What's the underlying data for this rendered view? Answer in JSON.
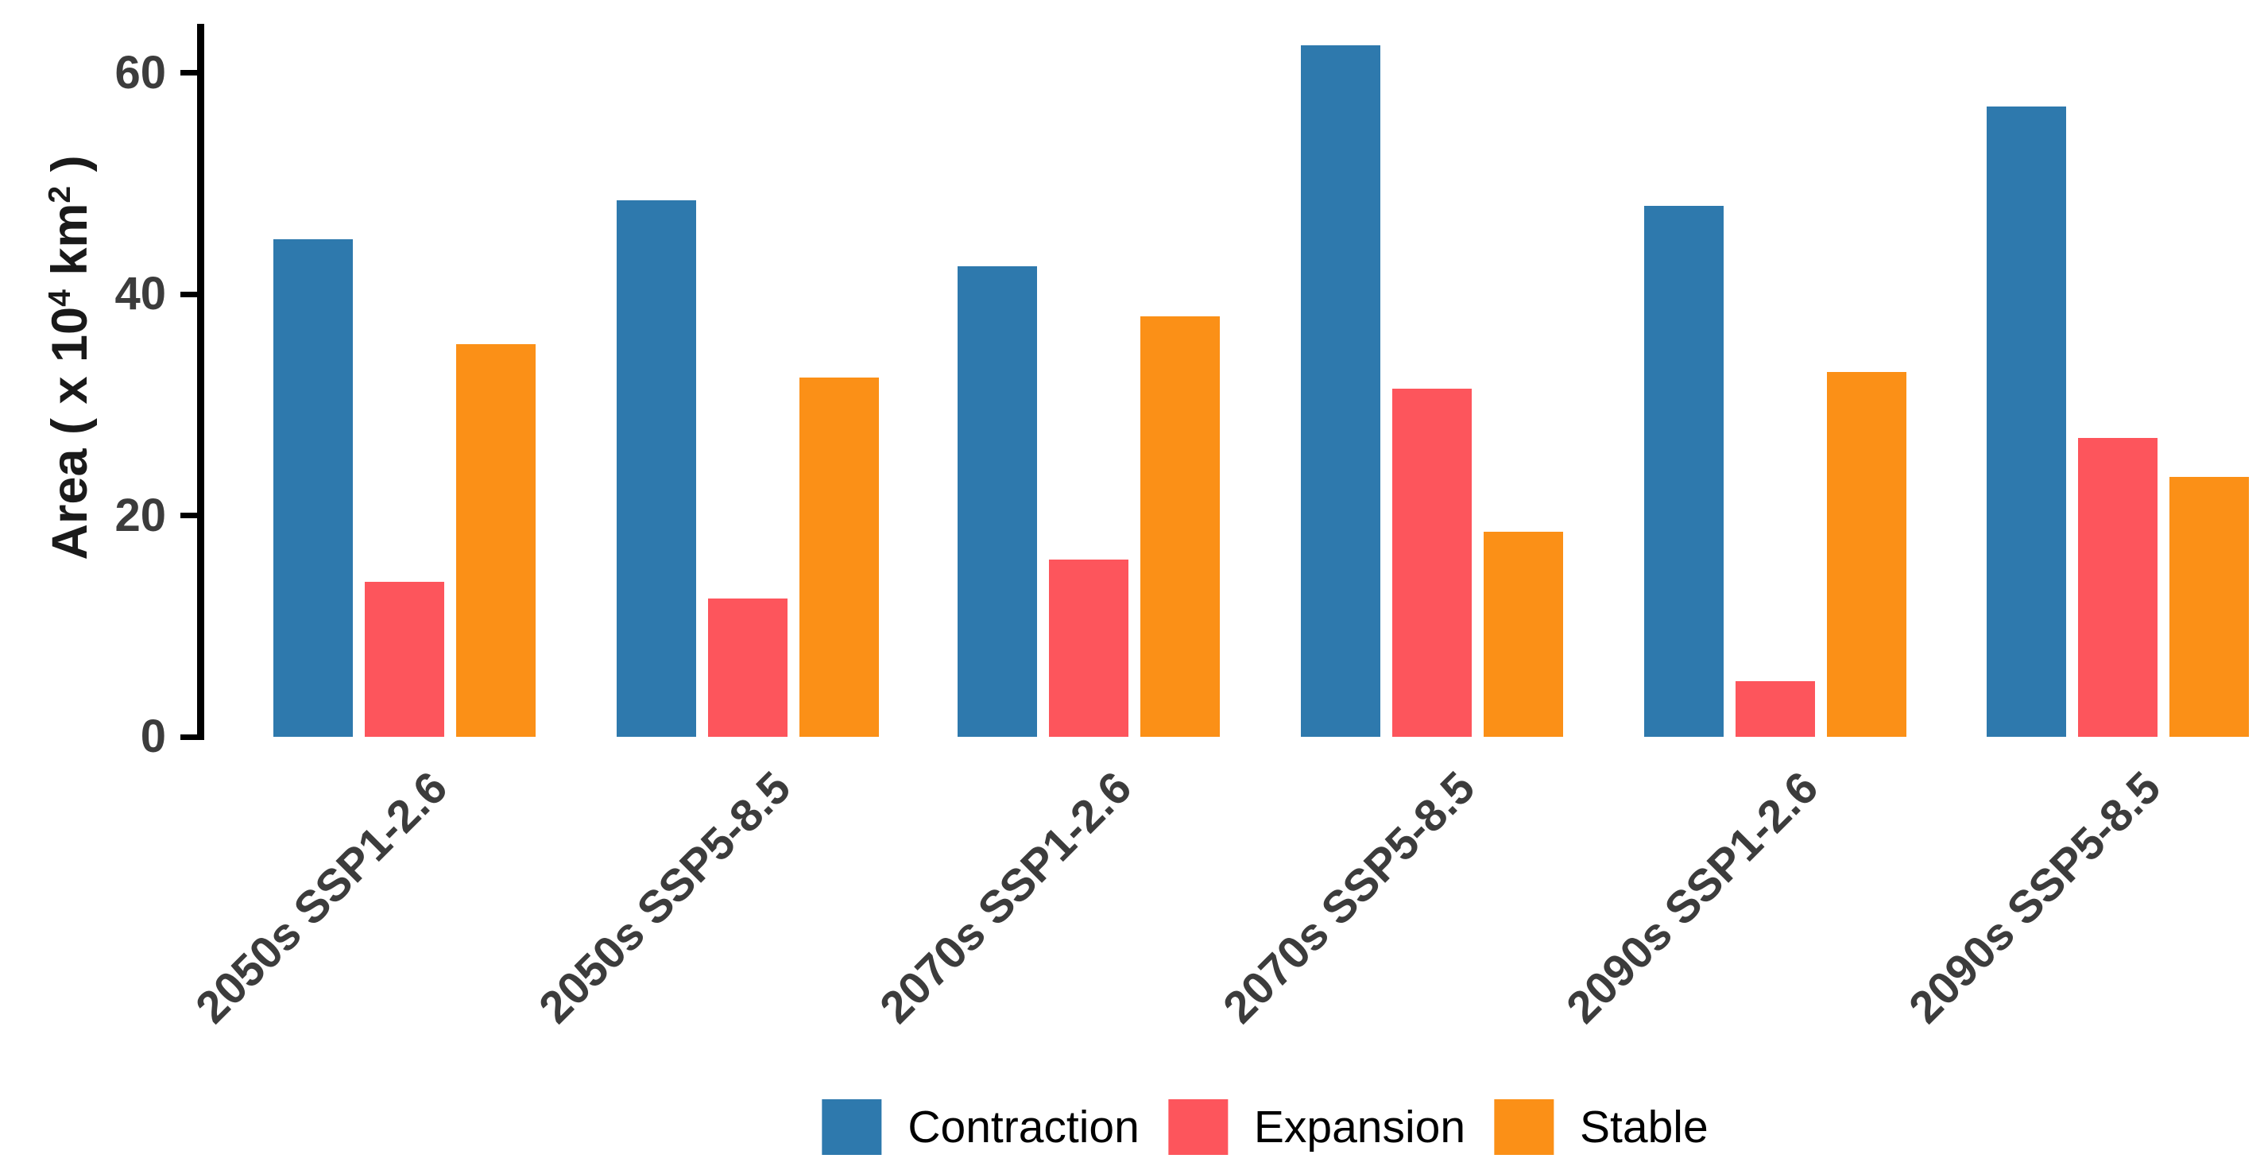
{
  "chart_data": {
    "type": "bar",
    "title": "",
    "categories": [
      "2050s SSP1-2.6",
      "2050s SSP5-8.5",
      "2070s SSP1-2.6",
      "2070s SSP5-8.5",
      "2090s SSP1-2.6",
      "2090s SSP5-8.5"
    ],
    "series": [
      {
        "name": "Contraction",
        "color": "#2E79AD",
        "values": [
          45,
          48.5,
          42.5,
          62.5,
          48,
          57
        ]
      },
      {
        "name": "Expansion",
        "color": "#FD555C",
        "values": [
          14,
          12.5,
          16,
          31.5,
          5,
          27
        ]
      },
      {
        "name": "Stable",
        "color": "#FB9017",
        "values": [
          35.5,
          32.5,
          38,
          18.5,
          33,
          23.5
        ]
      }
    ],
    "ylabel": "Area ( x 10^4  km^2 )",
    "ylabel_parts": {
      "pre": "Area ( x 10",
      "sup1": "4",
      "mid": " km",
      "sup2": "2",
      "post": " )"
    },
    "xlabel": "",
    "y_ticks": [
      "0",
      "20",
      "40",
      "60"
    ],
    "y_tick_values": [
      0,
      20,
      40,
      60
    ],
    "ylim": [
      0,
      64.4
    ],
    "grid": false,
    "legend_position": "bottom",
    "axis_color": "#000000",
    "tick_label_color": "#3c3c3c"
  }
}
